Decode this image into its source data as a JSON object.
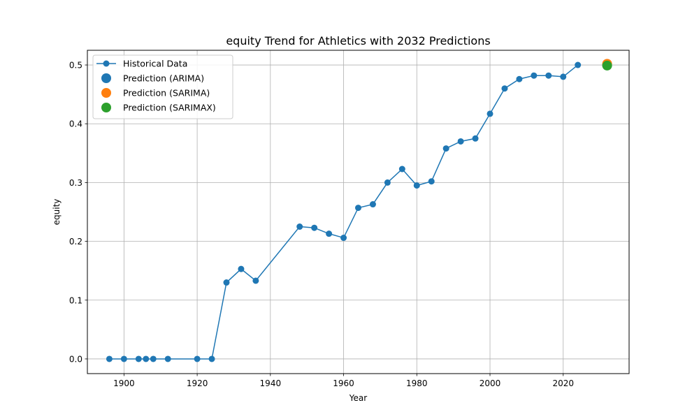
{
  "chart_data": {
    "type": "line",
    "title": "equity Trend for Athletics with 2032 Predictions",
    "xlabel": "Year",
    "ylabel": "equity",
    "xlim": [
      1890,
      2038
    ],
    "ylim": [
      -0.025,
      0.525
    ],
    "x_ticks": [
      1900,
      1920,
      1940,
      1960,
      1980,
      2000,
      2020
    ],
    "y_ticks": [
      0.0,
      0.1,
      0.2,
      0.3,
      0.4,
      0.5
    ],
    "y_tick_labels": [
      "0.0",
      "0.1",
      "0.2",
      "0.3",
      "0.4",
      "0.5"
    ],
    "grid": true,
    "legend_position": "top-left",
    "series": [
      {
        "name": "Historical Data",
        "kind": "line-marker",
        "color": "#1f77b4",
        "x": [
          1896,
          1900,
          1904,
          1906,
          1908,
          1912,
          1920,
          1924,
          1928,
          1932,
          1936,
          1948,
          1952,
          1956,
          1960,
          1964,
          1968,
          1972,
          1976,
          1980,
          1984,
          1988,
          1992,
          1996,
          2000,
          2004,
          2008,
          2012,
          2016,
          2020,
          2024
        ],
        "y": [
          0.0,
          0.0,
          0.0,
          0.0,
          0.0,
          0.0,
          0.0,
          0.0,
          0.13,
          0.153,
          0.133,
          0.225,
          0.223,
          0.213,
          0.206,
          0.257,
          0.263,
          0.3,
          0.323,
          0.295,
          0.302,
          0.358,
          0.37,
          0.375,
          0.417,
          0.46,
          0.476,
          0.482,
          0.482,
          0.48,
          0.5
        ]
      },
      {
        "name": "Prediction (ARIMA)",
        "kind": "point",
        "color": "#1f77b4",
        "x": [
          2032
        ],
        "y": [
          0.5
        ]
      },
      {
        "name": "Prediction (SARIMA)",
        "kind": "point",
        "color": "#ff7f0e",
        "x": [
          2032
        ],
        "y": [
          0.502
        ]
      },
      {
        "name": "Prediction (SARIMAX)",
        "kind": "point",
        "color": "#2ca02c",
        "x": [
          2032
        ],
        "y": [
          0.499
        ]
      }
    ]
  }
}
